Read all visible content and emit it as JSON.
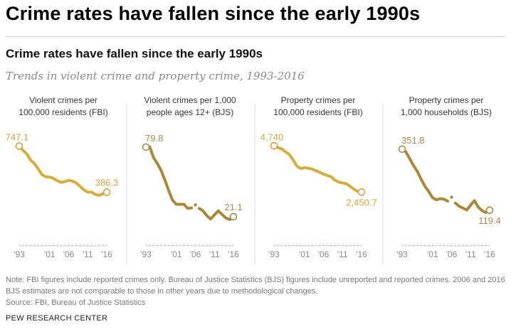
{
  "page_title": "Crime rates have fallen since the early 1990s",
  "chart_title": "Crime rates have fallen since the early 1990s",
  "subtitle": "Trends in violent crime and property crime, 1993-2016",
  "note": "Note: FBI figures include reported crimes only. Bureau of Justice Statistics (BJS) figures include unreported and reported crimes. 2006 and 2016 BJS estimates are not comparable to those in other years due to methodological changes.",
  "source": "Source: FBI, Bureau of Justice Statistics",
  "credit": "PEW RESEARCH CENTER",
  "colors": {
    "fbi": "#d4ad3c",
    "bjs": "#a8893a",
    "label_fbi": "#c9a640",
    "label_bjs": "#a08a55"
  },
  "chart_data": [
    {
      "type": "line",
      "title": "Violent crimes per 100,000 residents (FBI)",
      "title_lines": [
        "Violent crimes per",
        "100,000 residents (FBI)"
      ],
      "color_key": "fbi",
      "x": [
        1993,
        1994,
        1995,
        1996,
        1997,
        1998,
        1999,
        2000,
        2001,
        2002,
        2003,
        2004,
        2005,
        2006,
        2007,
        2008,
        2009,
        2010,
        2011,
        2012,
        2013,
        2014,
        2015,
        2016
      ],
      "values": [
        747.1,
        713.6,
        684.5,
        636.6,
        611.0,
        567.6,
        523.0,
        506.5,
        504.5,
        494.4,
        475.8,
        463.2,
        469.0,
        479.3,
        471.8,
        458.6,
        431.9,
        404.5,
        387.1,
        387.8,
        369.1,
        361.6,
        373.7,
        386.3
      ],
      "ylim": [
        0,
        750
      ],
      "start_label": "747.1",
      "end_label": "386.3",
      "end_label_pos": "above",
      "xticks": [
        "'93",
        "'01",
        "'06",
        "'11",
        "'16"
      ],
      "break_year": null
    },
    {
      "type": "line",
      "title": "Violent crimes per 1,000 people ages 12+ (BJS)",
      "title_lines": [
        "Violent crimes per 1,000",
        "people ages 12+ (BJS)"
      ],
      "color_key": "bjs",
      "x": [
        1993,
        1994,
        1995,
        1996,
        1997,
        1998,
        1999,
        2000,
        2001,
        2002,
        2003,
        2004,
        2005,
        2006,
        2007,
        2008,
        2009,
        2010,
        2011,
        2012,
        2013,
        2014,
        2015,
        2016
      ],
      "values": [
        79.8,
        80.0,
        71,
        66,
        60,
        52,
        43,
        35,
        31.5,
        31.5,
        31.5,
        28,
        28.5,
        31,
        28,
        26,
        22,
        19,
        22.5,
        26,
        23,
        20,
        18.6,
        21.1
      ],
      "ylim": [
        0,
        81
      ],
      "start_label": "79.8",
      "end_label": "21.1",
      "end_label_pos": "above",
      "xticks": [
        "'93",
        "'01",
        "'06",
        "'11",
        "'16"
      ],
      "break_year": 2006
    },
    {
      "type": "line",
      "title": "Property crimes per 100,000 residents (FBI)",
      "title_lines": [
        "Property crimes per",
        "100,000 residents (FBI)"
      ],
      "color_key": "fbi",
      "x": [
        1993,
        1994,
        1995,
        1996,
        1997,
        1998,
        1999,
        2000,
        2001,
        2002,
        2003,
        2004,
        2005,
        2006,
        2007,
        2008,
        2009,
        2010,
        2011,
        2012,
        2013,
        2014,
        2015,
        2016
      ],
      "values": [
        4740,
        4660.2,
        4590.5,
        4451.0,
        4316.3,
        4052.5,
        3743.6,
        3618.3,
        3658.1,
        3630.6,
        3591.2,
        3514.1,
        3431.5,
        3346.6,
        3276.4,
        3214.6,
        3041.3,
        2945.9,
        2905.4,
        2868.0,
        2733.6,
        2596.1,
        2487.0,
        2450.7
      ],
      "ylim": [
        0,
        4750
      ],
      "start_label": "4,740",
      "end_label": "2,450.7",
      "end_label_pos": "below",
      "xticks": [
        "'93",
        "'01",
        "'06",
        "'11",
        "'16"
      ],
      "break_year": null
    },
    {
      "type": "line",
      "title": "Property crimes per 1,000 households (BJS)",
      "title_lines": [
        "Property crimes per",
        "1,000 households (BJS)"
      ],
      "color_key": "bjs",
      "x": [
        1993,
        1994,
        1995,
        1996,
        1997,
        1998,
        1999,
        2000,
        2001,
        2002,
        2003,
        2004,
        2005,
        2006,
        2007,
        2008,
        2009,
        2010,
        2011,
        2012,
        2013,
        2014,
        2015,
        2016
      ],
      "values": [
        351.8,
        341.2,
        315.5,
        289.3,
        267.3,
        237.1,
        210.6,
        190.4,
        166.9,
        159.0,
        163.2,
        161.1,
        154.0,
        169.0,
        146.5,
        134.7,
        127.4,
        120.2,
        138.7,
        155.8,
        131.4,
        118.1,
        110.7,
        119.4
      ],
      "ylim": [
        0,
        365
      ],
      "start_label": "351.8",
      "end_label": "119.4",
      "end_label_pos": "below",
      "xticks": [
        "'93",
        "'01",
        "'06",
        "'11",
        "'16"
      ],
      "break_year": 2006
    }
  ]
}
